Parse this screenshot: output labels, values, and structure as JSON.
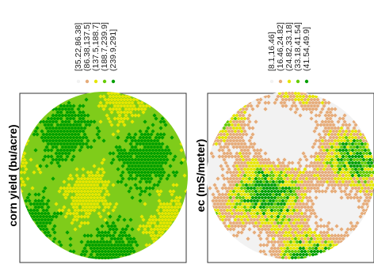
{
  "chart_data": [
    {
      "type": "scatter",
      "ylabel": "corn yield (bu/acre)",
      "legend": {
        "placement": "top",
        "orientation": "rotated",
        "bins": [
          {
            "label": "[35.22,86.38]",
            "color": "#f2f2f2"
          },
          {
            "label": "(86.38,137.5]",
            "color": "#e6ac7a"
          },
          {
            "label": "(137.5,188.7]",
            "color": "#e6e600"
          },
          {
            "label": "(188.7,239.9]",
            "color": "#66cc00"
          },
          {
            "label": "(239.9,291]",
            "color": "#00a000"
          }
        ]
      },
      "grid": false,
      "axis_ticks": false
    },
    {
      "type": "scatter",
      "ylabel": "ec (mS/meter)",
      "legend": {
        "placement": "top",
        "orientation": "rotated",
        "bins": [
          {
            "label": "[8.1,16.46]",
            "color": "#f2f2f2"
          },
          {
            "label": "(16.46,24.82]",
            "color": "#e6ac7a"
          },
          {
            "label": "(24.82,33.18]",
            "color": "#e6e600"
          },
          {
            "label": "(33.18,41.54]",
            "color": "#66cc00"
          },
          {
            "label": "(41.54,49.9]",
            "color": "#00a000"
          }
        ]
      },
      "grid": false,
      "axis_ticks": false
    }
  ]
}
